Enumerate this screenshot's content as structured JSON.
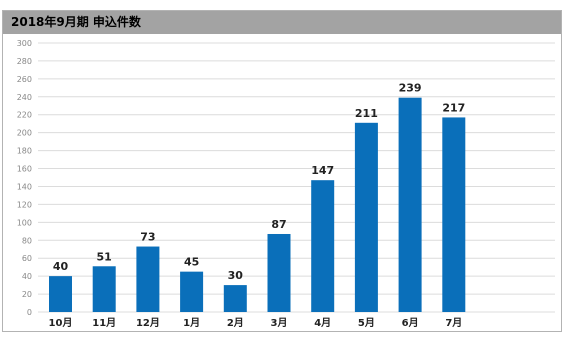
{
  "chart_data": {
    "type": "bar",
    "title": "2018年9月期 申込件数",
    "categories": [
      "10月",
      "11月",
      "12月",
      "1月",
      "2月",
      "3月",
      "4月",
      "5月",
      "6月",
      "7月"
    ],
    "values": [
      40,
      51,
      73,
      45,
      30,
      87,
      147,
      211,
      239,
      217
    ],
    "y_ticks": [
      "0",
      "20",
      "40",
      "60",
      "80",
      "100",
      "120",
      "140",
      "160",
      "180",
      "200",
      "220",
      "240",
      "260",
      "280",
      "300"
    ],
    "ylim": [
      0,
      300
    ],
    "grid": true,
    "legend": "none",
    "xlabel": "",
    "ylabel": "",
    "colors": {
      "bar": "#0a6fba",
      "grid": "#dcdcdc",
      "title_bar": "#a3a3a3",
      "tick_text": "#888888"
    }
  }
}
